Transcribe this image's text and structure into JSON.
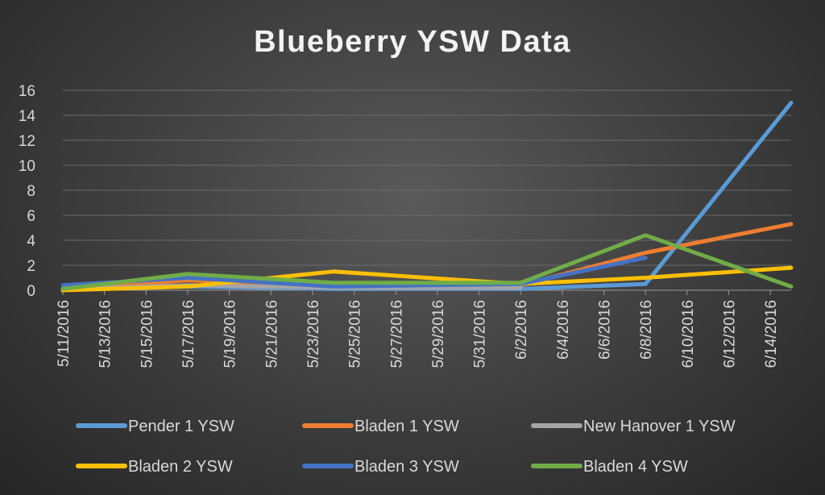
{
  "chart_data": {
    "type": "line",
    "title": "Blueberry YSW Data",
    "xlabel": "",
    "ylabel": "",
    "ylim": [
      0,
      16
    ],
    "yticks": [
      0,
      2,
      4,
      6,
      8,
      10,
      12,
      14,
      16
    ],
    "x_tick_labels": [
      "5/11/2016",
      "5/13/2016",
      "5/15/2016",
      "5/17/2016",
      "5/19/2016",
      "5/21/2016",
      "5/23/2016",
      "5/25/2016",
      "5/27/2016",
      "5/29/2016",
      "5/31/2016",
      "6/2/2016",
      "6/4/2016",
      "6/6/2016",
      "6/8/2016",
      "6/10/2016",
      "6/12/2016",
      "6/14/2016"
    ],
    "xlim": [
      "5/11/2016",
      "6/15/2016"
    ],
    "grid": true,
    "legend_position": "bottom",
    "series": [
      {
        "name": "Pender 1 YSW",
        "color": "#5b9bd5",
        "points": [
          [
            "5/11/2016",
            0.1
          ],
          [
            "5/17/2016",
            0.3
          ],
          [
            "5/24/2016",
            0.1
          ],
          [
            "6/2/2016",
            0.1
          ],
          [
            "6/8/2016",
            0.5
          ],
          [
            "6/15/2016",
            15
          ]
        ]
      },
      {
        "name": "Bladen 1 YSW",
        "color": "#ed7d31",
        "points": [
          [
            "5/11/2016",
            0.1
          ],
          [
            "5/17/2016",
            0.8
          ],
          [
            "5/24/2016",
            0.3
          ],
          [
            "6/2/2016",
            0.4
          ],
          [
            "6/8/2016",
            3
          ],
          [
            "6/15/2016",
            5.3
          ]
        ]
      },
      {
        "name": "New Hanover 1 YSW",
        "color": "#a5a5a5",
        "points": [
          [
            "5/11/2016",
            0.1
          ],
          [
            "5/17/2016",
            0.4
          ],
          [
            "5/24/2016",
            0.2
          ],
          [
            "6/2/2016",
            0.2
          ]
        ]
      },
      {
        "name": "Bladen 2 YSW",
        "color": "#ffc000",
        "points": [
          [
            "5/11/2016",
            0
          ],
          [
            "5/17/2016",
            0.3
          ],
          [
            "5/24/2016",
            1.5
          ],
          [
            "6/2/2016",
            0.5
          ],
          [
            "6/8/2016",
            1
          ],
          [
            "6/15/2016",
            1.8
          ]
        ]
      },
      {
        "name": "Bladen 3 YSW",
        "color": "#4472c4",
        "points": [
          [
            "5/11/2016",
            0.4
          ],
          [
            "5/17/2016",
            1
          ],
          [
            "5/24/2016",
            0.3
          ],
          [
            "6/2/2016",
            0.5
          ],
          [
            "6/8/2016",
            2.6
          ]
        ]
      },
      {
        "name": "Bladen 4 YSW",
        "color": "#70ad47",
        "points": [
          [
            "5/11/2016",
            0.1
          ],
          [
            "5/17/2016",
            1.3
          ],
          [
            "5/24/2016",
            0.6
          ],
          [
            "6/2/2016",
            0.6
          ],
          [
            "6/8/2016",
            4.4
          ],
          [
            "6/15/2016",
            0.3
          ]
        ]
      }
    ]
  }
}
